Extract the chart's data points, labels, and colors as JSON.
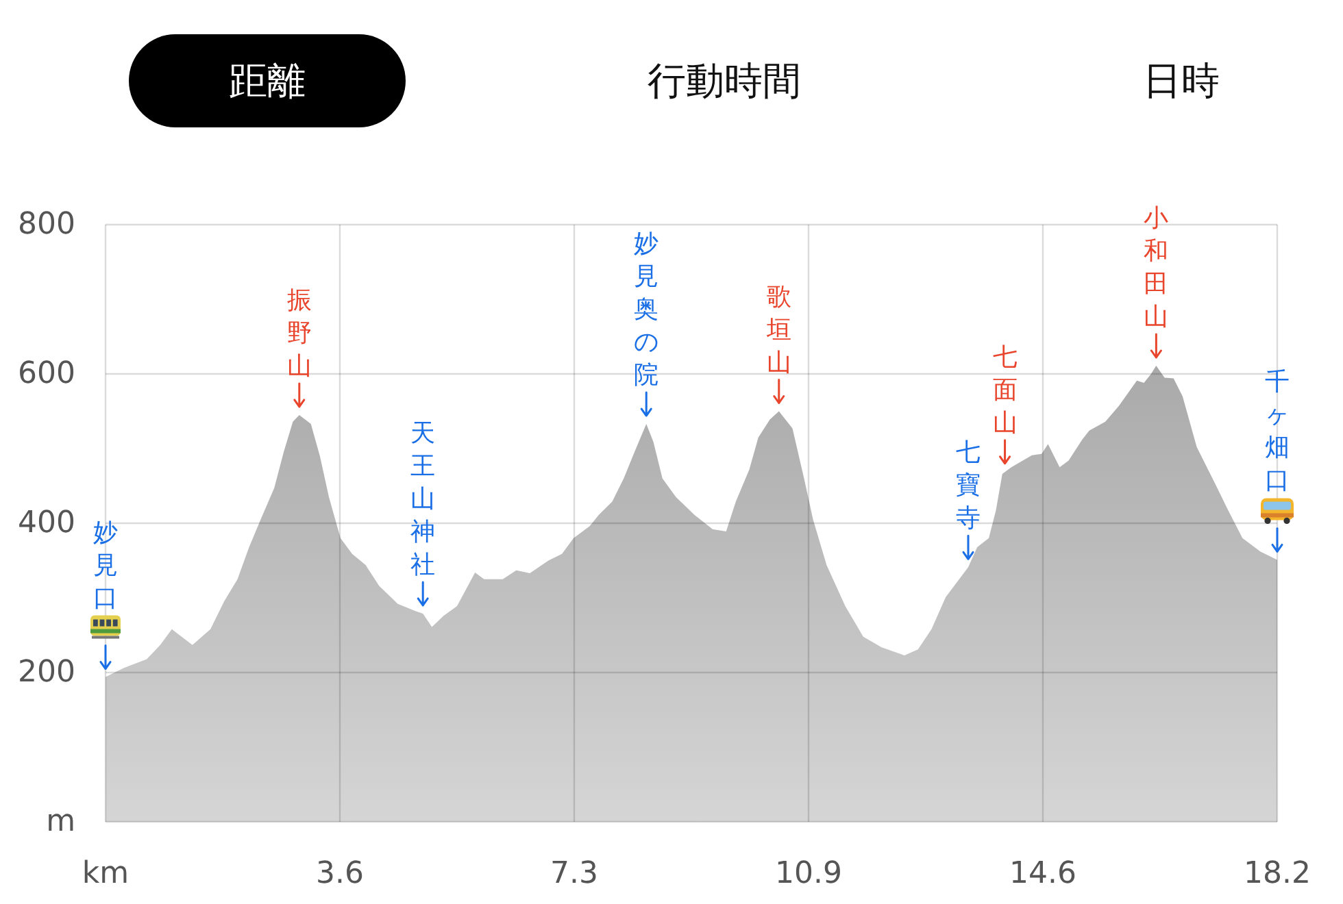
{
  "chart_data": {
    "type": "area",
    "title": "距離",
    "annotations": [
      "行動時間",
      "日時",
      {
        "text": "妙見口",
        "x": 0,
        "y": 194
      },
      {
        "text": "振野山",
        "x": 3.01,
        "y": 545
      },
      {
        "text": "天王山神社",
        "x": 4.93,
        "y": 279
      },
      {
        "text": "妙見奥の院",
        "x": 8.4,
        "y": 533
      },
      {
        "text": "歌垣山",
        "x": 10.46,
        "y": 550
      },
      {
        "text": "七寶寺",
        "x": 13.4,
        "y": 341
      },
      {
        "text": "七面山",
        "x": 13.97,
        "y": 469
      },
      {
        "text": "小和田山",
        "x": 16.32,
        "y": 611
      },
      {
        "text": "千ヶ畑口",
        "x": 18.2,
        "y": 351
      }
    ],
    "x": [
      0,
      0.28,
      0.64,
      0.85,
      1.03,
      1.35,
      1.63,
      1.84,
      2.05,
      2.23,
      2.41,
      2.62,
      2.77,
      2.91,
      3.01,
      3.19,
      3.33,
      3.47,
      3.65,
      3.83,
      4.04,
      4.25,
      4.54,
      4.82,
      4.93,
      5.07,
      5.25,
      5.46,
      5.74,
      5.88,
      6.17,
      6.38,
      6.59,
      6.88,
      7.09,
      7.27,
      7.52,
      7.66,
      7.87,
      8.05,
      8.22,
      8.4,
      8.51,
      8.65,
      8.86,
      9.15,
      9.43,
      9.64,
      9.79,
      10.0,
      10.14,
      10.32,
      10.46,
      10.67,
      10.85,
      10.99,
      11.2,
      11.49,
      11.77,
      12.05,
      12.41,
      12.62,
      12.83,
      13.05,
      13.26,
      13.4,
      13.54,
      13.72,
      13.83,
      13.93,
      14.07,
      14.39,
      14.54,
      14.64,
      14.82,
      14.96,
      15.17,
      15.28,
      15.53,
      15.74,
      16.02,
      16.13,
      16.24,
      16.32,
      16.45,
      16.59,
      16.73,
      16.95,
      17.23,
      17.44,
      17.66,
      17.94,
      18.2
    ],
    "series": [
      {
        "color": "#9c9c9c",
        "values": [
          194,
          206,
          218,
          237,
          258,
          237,
          258,
          295,
          325,
          368,
          405,
          447,
          496,
          536,
          545,
          533,
          490,
          435,
          380,
          359,
          344,
          316,
          292,
          282,
          279,
          261,
          276,
          289,
          334,
          325,
          325,
          337,
          333,
          350,
          359,
          380,
          396,
          411,
          429,
          460,
          496,
          533,
          509,
          460,
          435,
          411,
          392,
          389,
          429,
          472,
          515,
          539,
          550,
          527,
          460,
          405,
          344,
          289,
          248,
          234,
          223,
          231,
          258,
          301,
          325,
          341,
          368,
          380,
          417,
          466,
          475,
          491,
          493,
          506,
          475,
          484,
          512,
          524,
          536,
          557,
          591,
          588,
          600,
          611,
          595,
          594,
          570,
          502,
          454,
          417,
          380,
          362,
          351
        ]
      }
    ],
    "xlim": [
      0,
      18.2
    ],
    "xticks": [
      {
        "value": 0,
        "label": "km"
      },
      {
        "value": 3.64,
        "label": "3.6"
      },
      {
        "value": 7.28,
        "label": "7.3"
      },
      {
        "value": 10.92,
        "label": "10.9"
      },
      {
        "value": 14.56,
        "label": "14.6"
      },
      18.2
    ],
    "ylim": [
      0,
      800
    ],
    "yticks": [
      {
        "value": 0,
        "label": "m"
      },
      200,
      400,
      600,
      800
    ],
    "grid": true
  }
}
